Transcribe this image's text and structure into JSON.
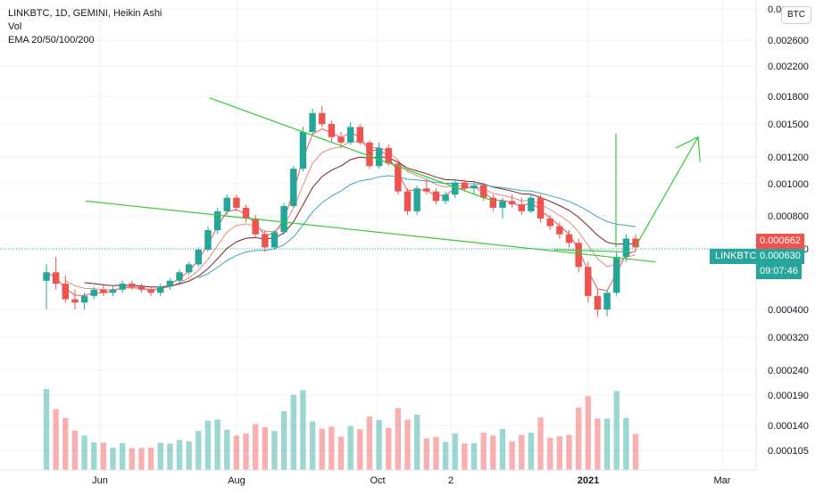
{
  "chart_data": {
    "type": "candlestick",
    "legend": {
      "symbol_line": "LINKBTC, 1D, GEMINI, Heikin Ashi",
      "volume_label": "Vol",
      "ema_label": "EMA 20/50/100/200"
    },
    "currency": "BTC",
    "x_ticks": [
      "Jun",
      "Aug",
      "Oct",
      "2",
      "2021",
      "Mar"
    ],
    "y_ticks": [
      "0.0",
      "0.002600",
      "0.002200",
      "0.001800",
      "0.001500",
      "0.001200",
      "0.001000",
      "0.000800",
      "0.000630",
      "0.000400",
      "0.000320",
      "0.000240",
      "0.000190",
      "0.000140",
      "0.000105"
    ],
    "y_scale": "log",
    "grid": true,
    "price_labels": {
      "last_price": "0.000662",
      "symbol": "LINKBTC",
      "current_price": "0.000630",
      "countdown": "09:07:46"
    },
    "colors": {
      "up": "#26a69a",
      "down": "#ef5350",
      "trendline": "#33cc33",
      "ema20": "#ef5350",
      "ema50": "#e98a7a",
      "ema100": "#7a1f2b",
      "ema200": "#3aa5b8"
    },
    "series": [
      {
        "values": [
          [
            0.00049,
            0.00055,
            0.0004,
            0.00052
          ],
          [
            0.00052,
            0.00058,
            0.00046,
            0.00048
          ],
          [
            0.00048,
            0.00051,
            0.00042,
            0.00043
          ],
          [
            0.00043,
            0.00046,
            0.0004,
            0.00042
          ],
          [
            0.00042,
            0.00045,
            0.0004,
            0.00044
          ],
          [
            0.00044,
            0.00047,
            0.00043,
            0.00046
          ],
          [
            0.00046,
            0.00048,
            0.00044,
            0.00045
          ],
          [
            0.00045,
            0.00047,
            0.00044,
            0.00046
          ],
          [
            0.00046,
            0.00049,
            0.00045,
            0.00048
          ],
          [
            0.00048,
            0.00049,
            0.00046,
            0.00047
          ],
          [
            0.00047,
            0.00048,
            0.00045,
            0.00046
          ],
          [
            0.00046,
            0.00047,
            0.00044,
            0.00045
          ],
          [
            0.00045,
            0.00048,
            0.00044,
            0.00047
          ],
          [
            0.00047,
            0.0005,
            0.00046,
            0.00049
          ],
          [
            0.00049,
            0.00053,
            0.00048,
            0.00052
          ],
          [
            0.00052,
            0.00056,
            0.00051,
            0.00055
          ],
          [
            0.00055,
            0.00062,
            0.00054,
            0.00061
          ],
          [
            0.00061,
            0.00072,
            0.0006,
            0.0007
          ],
          [
            0.0007,
            0.00082,
            0.00068,
            0.0008
          ],
          [
            0.0008,
            0.0009,
            0.00078,
            0.00088
          ],
          [
            0.00088,
            0.0009,
            0.0008,
            0.00082
          ],
          [
            0.00082,
            0.00084,
            0.00074,
            0.00076
          ],
          [
            0.00076,
            0.00078,
            0.00066,
            0.00068
          ],
          [
            0.00068,
            0.0007,
            0.0006,
            0.00062
          ],
          [
            0.00062,
            0.0007,
            0.00061,
            0.00069
          ],
          [
            0.00069,
            0.00085,
            0.00068,
            0.00083
          ],
          [
            0.00083,
            0.0011,
            0.00082,
            0.00108
          ],
          [
            0.00108,
            0.00145,
            0.00106,
            0.0014
          ],
          [
            0.0014,
            0.00165,
            0.00138,
            0.0016
          ],
          [
            0.0016,
            0.00168,
            0.00145,
            0.00148
          ],
          [
            0.00148,
            0.00152,
            0.0013,
            0.00135
          ],
          [
            0.00135,
            0.0014,
            0.00125,
            0.0013
          ],
          [
            0.0013,
            0.0015,
            0.00128,
            0.00145
          ],
          [
            0.00145,
            0.00148,
            0.00128,
            0.0013
          ],
          [
            0.0013,
            0.00132,
            0.00108,
            0.0011
          ],
          [
            0.0011,
            0.0013,
            0.00108,
            0.00125
          ],
          [
            0.00125,
            0.00128,
            0.0011,
            0.00112
          ],
          [
            0.00112,
            0.00114,
            0.0009,
            0.00092
          ],
          [
            0.00092,
            0.00094,
            0.00078,
            0.0008
          ],
          [
            0.0008,
            0.00096,
            0.00078,
            0.00094
          ],
          [
            0.00094,
            0.001,
            0.0009,
            0.00092
          ],
          [
            0.00092,
            0.00094,
            0.00084,
            0.00086
          ],
          [
            0.00086,
            0.00092,
            0.00084,
            0.0009
          ],
          [
            0.0009,
            0.001,
            0.00088,
            0.00098
          ],
          [
            0.00098,
            0.001,
            0.00092,
            0.00094
          ],
          [
            0.00094,
            0.00098,
            0.0009,
            0.00096
          ],
          [
            0.00096,
            0.00098,
            0.00086,
            0.00088
          ],
          [
            0.00088,
            0.0009,
            0.0008,
            0.00082
          ],
          [
            0.00082,
            0.00088,
            0.00076,
            0.00086
          ],
          [
            0.00086,
            0.0009,
            0.00082,
            0.00084
          ],
          [
            0.00084,
            0.00088,
            0.00078,
            0.0008
          ],
          [
            0.0008,
            0.0009,
            0.00079,
            0.00088
          ],
          [
            0.00088,
            0.0009,
            0.00074,
            0.00076
          ],
          [
            0.00076,
            0.00078,
            0.0007,
            0.00072
          ],
          [
            0.00072,
            0.00074,
            0.00066,
            0.00068
          ],
          [
            0.00068,
            0.0007,
            0.00062,
            0.00064
          ],
          [
            0.00064,
            0.00066,
            0.00052,
            0.00054
          ],
          [
            0.00054,
            0.00056,
            0.00042,
            0.00044
          ],
          [
            0.00044,
            0.00046,
            0.00038,
            0.0004
          ],
          [
            0.0004,
            0.00046,
            0.00038,
            0.00045
          ],
          [
            0.00045,
            0.0006,
            0.00044,
            0.00058
          ],
          [
            0.00058,
            0.00068,
            0.00056,
            0.00066
          ],
          [
            0.00066,
            0.00068,
            0.0006,
            0.00062
          ]
        ]
      }
    ],
    "trendlines": [
      [
        [
          "2020-05-28",
          0.00086
        ],
        [
          "2021-02-05",
          0.00056
        ]
      ],
      [
        [
          "2020-07-22",
          0.00178
        ],
        [
          "2020-11-25",
          0.00086
        ]
      ],
      [
        [
          "2020-12-22",
          0.00061
        ],
        [
          "2021-01-25",
          0.0006
        ]
      ]
    ],
    "projection": [
      [
        "2021-01-27",
        0.00062
      ],
      [
        "2021-02-24",
        0.00135
      ]
    ]
  }
}
